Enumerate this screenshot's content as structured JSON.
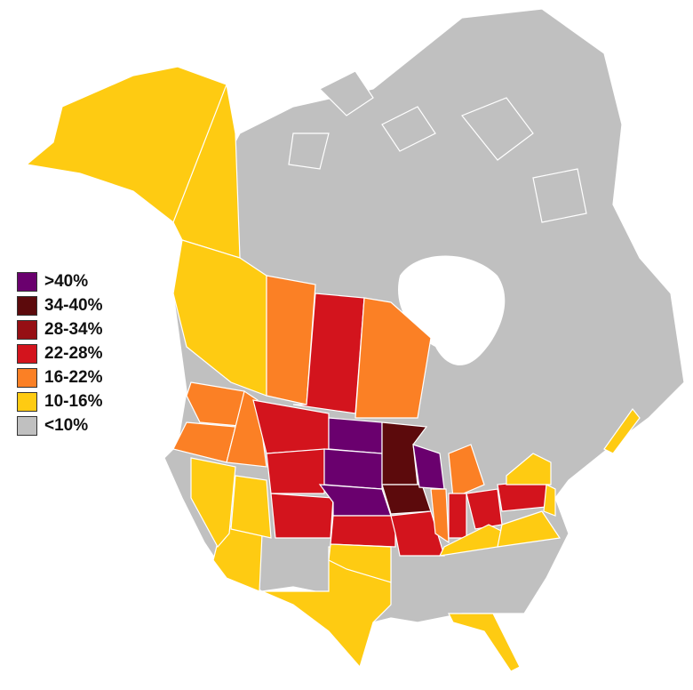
{
  "legend": [
    {
      "label": ">40%",
      "color": "#6a006e"
    },
    {
      "label": "34-40%",
      "color": "#5c0a0c"
    },
    {
      "label": "28-34%",
      "color": "#960f14"
    },
    {
      "label": "22-28%",
      "color": "#d3141d"
    },
    {
      "label": "16-22%",
      "color": "#fb8025"
    },
    {
      "label": "10-16%",
      "color": "#fecb12"
    },
    {
      "label": "<10%",
      "color": "#c0c0c0"
    }
  ],
  "regions": [
    {
      "id": "alaska",
      "bin": 5
    },
    {
      "id": "yukon",
      "bin": 5
    },
    {
      "id": "british-columbia",
      "bin": 5
    },
    {
      "id": "alberta",
      "bin": 4
    },
    {
      "id": "saskatchewan",
      "bin": 3
    },
    {
      "id": "manitoba",
      "bin": 4
    },
    {
      "id": "washington",
      "bin": 4
    },
    {
      "id": "oregon",
      "bin": 4
    },
    {
      "id": "idaho",
      "bin": 4
    },
    {
      "id": "montana",
      "bin": 3
    },
    {
      "id": "wyoming",
      "bin": 3
    },
    {
      "id": "colorado",
      "bin": 3
    },
    {
      "id": "north-dakota",
      "bin": 0
    },
    {
      "id": "south-dakota",
      "bin": 0
    },
    {
      "id": "nebraska",
      "bin": 0
    },
    {
      "id": "kansas",
      "bin": 3
    },
    {
      "id": "minnesota",
      "bin": 1
    },
    {
      "id": "iowa",
      "bin": 1
    },
    {
      "id": "wisconsin",
      "bin": 0
    },
    {
      "id": "missouri",
      "bin": 3
    },
    {
      "id": "illinois",
      "bin": 4
    },
    {
      "id": "michigan",
      "bin": 4
    },
    {
      "id": "indiana",
      "bin": 3
    },
    {
      "id": "ohio",
      "bin": 3
    },
    {
      "id": "pennsylvania",
      "bin": 3
    },
    {
      "id": "new-york",
      "bin": 5
    },
    {
      "id": "kentucky",
      "bin": 5
    },
    {
      "id": "virginia-west-virginia",
      "bin": 5
    },
    {
      "id": "new-jersey-maryland",
      "bin": 5
    },
    {
      "id": "nova-scotia",
      "bin": 5
    },
    {
      "id": "texas",
      "bin": 5
    },
    {
      "id": "oklahoma",
      "bin": 5
    },
    {
      "id": "arizona",
      "bin": 5
    },
    {
      "id": "utah",
      "bin": 5
    },
    {
      "id": "nevada",
      "bin": 5
    },
    {
      "id": "florida",
      "bin": 5
    }
  ]
}
